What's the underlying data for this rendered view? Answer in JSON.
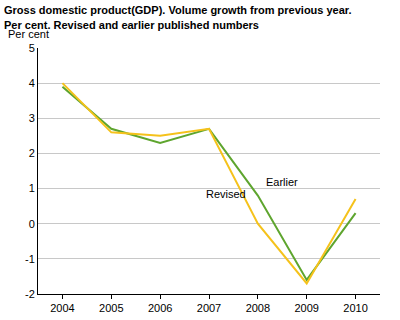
{
  "chart_data": {
    "type": "line",
    "title": [
      "Gross domestic product(GDP). Volume growth from previous year.",
      "Per cent. Revised and earlier published numbers"
    ],
    "ylabel": "Per cent",
    "categories": [
      "2004",
      "2005",
      "2006",
      "2007",
      "2008",
      "2009",
      "2010"
    ],
    "series": [
      {
        "name": "Earlier",
        "color": "#5ea52e",
        "values": [
          3.9,
          2.7,
          2.3,
          2.7,
          0.8,
          -1.6,
          0.3
        ]
      },
      {
        "name": "Revised",
        "color": "#f5c21b",
        "values": [
          4.0,
          2.6,
          2.5,
          2.7,
          0.0,
          -1.7,
          0.7
        ]
      }
    ],
    "ylim": [
      -2,
      5
    ],
    "yticks": [
      -2,
      -1,
      0,
      1,
      2,
      3,
      4,
      5
    ],
    "grid": true
  }
}
